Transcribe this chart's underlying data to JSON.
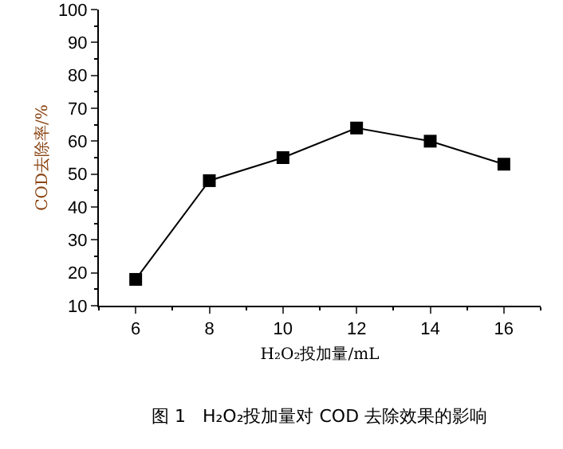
{
  "chart_data": {
    "type": "line",
    "x": [
      6,
      8,
      10,
      12,
      14,
      16
    ],
    "values": [
      18,
      48,
      55,
      64,
      60,
      53
    ],
    "color": "#000000",
    "marker": "square",
    "line_style": "solid",
    "xlim": [
      5,
      17
    ],
    "xticks": [
      6,
      8,
      10,
      12,
      14,
      16
    ],
    "ylim": [
      10,
      100
    ],
    "yticks": [
      10,
      20,
      30,
      40,
      50,
      60,
      70,
      80,
      90,
      100
    ],
    "xlabel": "H₂O₂投加量/mL",
    "ylabel": "COD去除率/%",
    "grid": false,
    "annotations": [
      "图 1   H₂O₂投加量对 COD 去除效果的影响"
    ]
  }
}
